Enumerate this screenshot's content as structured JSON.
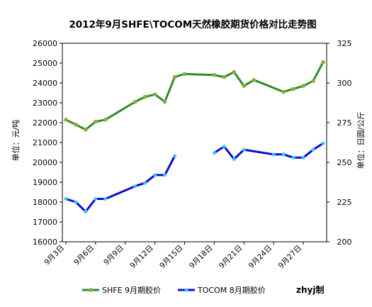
{
  "chart_data": {
    "type": "line",
    "title": "2012年9月SHFE\\TOCOM天然橡胶期货价格对比走势图",
    "ylabel_left": "单位：元/吨",
    "ylabel_right": "单位：日圆/公斤",
    "ylim_left": [
      16000,
      26000
    ],
    "ylim_right": [
      200,
      325
    ],
    "left_ticks": [
      16000,
      17000,
      18000,
      19000,
      20000,
      21000,
      22000,
      23000,
      24000,
      25000,
      26000
    ],
    "right_ticks": [
      200,
      225,
      250,
      275,
      300,
      325
    ],
    "xlim": [
      3,
      29
    ],
    "x_ticks": [
      3,
      6,
      9,
      12,
      15,
      18,
      21,
      24,
      27
    ],
    "x_tick_labels": [
      "9月3日",
      "9月6日",
      "9月9日",
      "9月12日",
      "9月15日",
      "9月18日",
      "9月21日",
      "9月24日",
      "9月27日"
    ],
    "watermark": "zhyj制",
    "grid": false,
    "legend_position": "bottom",
    "series": [
      {
        "name": "SHFE 9月期胶价",
        "axis": "left",
        "color": "#2e8b2e",
        "marker_color": "#8faa3a",
        "points": [
          {
            "x": 3,
            "y": 22150
          },
          {
            "x": 4,
            "y": 21900
          },
          {
            "x": 5,
            "y": 21650
          },
          {
            "x": 6,
            "y": 22050
          },
          {
            "x": 7,
            "y": 22150
          },
          {
            "x": 10,
            "y": 23050
          },
          {
            "x": 11,
            "y": 23300
          },
          {
            "x": 12,
            "y": 23420
          },
          {
            "x": 13,
            "y": 23050
          },
          {
            "x": 14,
            "y": 24300
          },
          {
            "x": 15,
            "y": 24450
          },
          {
            "x": 18,
            "y": 24400
          },
          {
            "x": 19,
            "y": 24300
          },
          {
            "x": 20,
            "y": 24550
          },
          {
            "x": 21,
            "y": 23850
          },
          {
            "x": 22,
            "y": 24150
          },
          {
            "x": 25,
            "y": 23550
          },
          {
            "x": 26,
            "y": 23700
          },
          {
            "x": 27,
            "y": 23850
          },
          {
            "x": 28,
            "y": 24100
          },
          {
            "x": 29,
            "y": 25050
          }
        ]
      },
      {
        "name": "TOCOM 8月期胶价",
        "axis": "right",
        "color": "#0b0bd4",
        "marker_color": "#35c8e8",
        "segments": [
          [
            {
              "x": 3,
              "y": 227
            },
            {
              "x": 4,
              "y": 225
            },
            {
              "x": 5,
              "y": 219
            },
            {
              "x": 6,
              "y": 227
            },
            {
              "x": 7,
              "y": 227
            },
            {
              "x": 10,
              "y": 235
            },
            {
              "x": 11,
              "y": 237
            },
            {
              "x": 12,
              "y": 242
            },
            {
              "x": 13,
              "y": 242
            },
            {
              "x": 14,
              "y": 254
            }
          ],
          [
            {
              "x": 18,
              "y": 256
            },
            {
              "x": 19,
              "y": 260
            },
            {
              "x": 20,
              "y": 252
            },
            {
              "x": 21,
              "y": 258
            },
            {
              "x": 24,
              "y": 255
            },
            {
              "x": 25,
              "y": 255
            },
            {
              "x": 26,
              "y": 253
            },
            {
              "x": 27,
              "y": 253
            },
            {
              "x": 28,
              "y": 258
            },
            {
              "x": 29,
              "y": 262
            }
          ]
        ]
      }
    ]
  }
}
